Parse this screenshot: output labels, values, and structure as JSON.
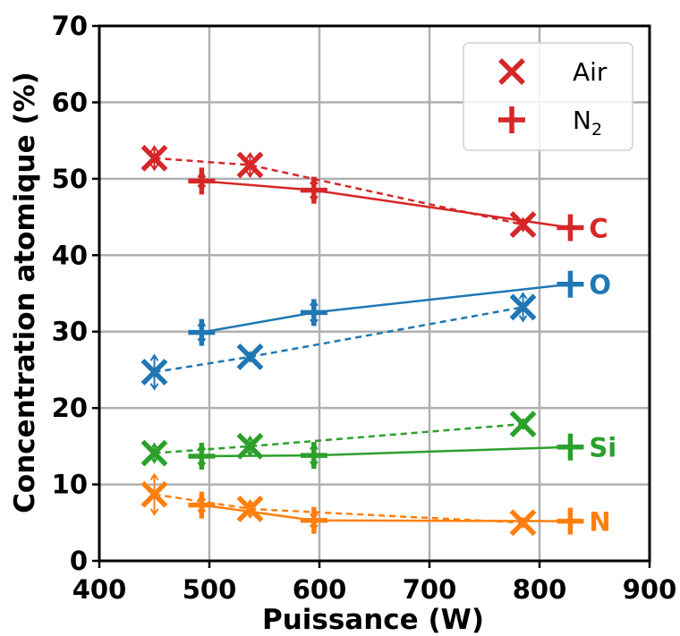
{
  "chart_data": {
    "type": "line",
    "xlabel": "Puissance (W)",
    "ylabel": "Concentration atomique (%)",
    "xlim": [
      400,
      900
    ],
    "ylim": [
      0,
      70
    ],
    "x_ticks": [
      "400",
      "500",
      "600",
      "700",
      "800",
      "900"
    ],
    "y_ticks": [
      "0",
      "10",
      "20",
      "30",
      "40",
      "50",
      "60",
      "70"
    ],
    "grid": true,
    "legend": {
      "placement": "top-right",
      "entries": [
        {
          "marker": "x",
          "label": "Air"
        },
        {
          "marker": "+",
          "label": "N",
          "subscript": "2"
        }
      ]
    },
    "series": [
      {
        "element": "C",
        "atmosphere": "Air",
        "color": "#d62728",
        "marker": "x",
        "line": "dashed",
        "x": [
          450,
          537,
          785
        ],
        "y": [
          52.7,
          51.8,
          44.0
        ],
        "yerr": [
          1.5,
          1.5,
          0.8
        ]
      },
      {
        "element": "C",
        "atmosphere": "N2",
        "color": "#d62728",
        "marker": "+",
        "line": "solid",
        "x": [
          493,
          595,
          828
        ],
        "y": [
          49.7,
          48.5,
          43.6
        ],
        "yerr": [
          1.2,
          1.5,
          0.5
        ]
      },
      {
        "element": "O",
        "atmosphere": "Air",
        "color": "#1f77b4",
        "marker": "x",
        "line": "dashed",
        "x": [
          450,
          537,
          785
        ],
        "y": [
          24.7,
          26.7,
          33.2
        ],
        "yerr": [
          2.2,
          0.6,
          1.8
        ]
      },
      {
        "element": "O",
        "atmosphere": "N2",
        "color": "#1f77b4",
        "marker": "+",
        "line": "solid",
        "x": [
          493,
          595,
          828
        ],
        "y": [
          29.9,
          32.5,
          36.2
        ],
        "yerr": [
          1.5,
          1.6,
          0.5
        ]
      },
      {
        "element": "Si",
        "atmosphere": "Air",
        "color": "#2ca02c",
        "marker": "x",
        "line": "dashed",
        "x": [
          450,
          537,
          785
        ],
        "y": [
          14.1,
          15.0,
          17.9
        ],
        "yerr": [
          1.2,
          1.2,
          0.6
        ]
      },
      {
        "element": "Si",
        "atmosphere": "N2",
        "color": "#2ca02c",
        "marker": "+",
        "line": "solid",
        "x": [
          493,
          595,
          828
        ],
        "y": [
          13.7,
          13.8,
          14.9
        ],
        "yerr": [
          1.5,
          1.5,
          0.5
        ]
      },
      {
        "element": "N",
        "atmosphere": "Air",
        "color": "#ff7f0e",
        "marker": "x",
        "line": "dashed",
        "x": [
          450,
          537,
          785
        ],
        "y": [
          8.7,
          6.8,
          5.0
        ],
        "yerr": [
          2.6,
          1.1,
          0.6
        ]
      },
      {
        "element": "N",
        "atmosphere": "N2",
        "color": "#ff7f0e",
        "marker": "+",
        "line": "solid",
        "x": [
          493,
          595,
          828
        ],
        "y": [
          7.3,
          5.3,
          5.2
        ],
        "yerr": [
          1.3,
          1.3,
          0.6
        ]
      }
    ],
    "annotations": [
      {
        "text": "C",
        "color": "#d62728",
        "x": 845,
        "y": 43.6
      },
      {
        "text": "O",
        "color": "#1f77b4",
        "x": 845,
        "y": 36.2
      },
      {
        "text": "Si",
        "color": "#2ca02c",
        "x": 845,
        "y": 14.9
      },
      {
        "text": "N",
        "color": "#ff7f0e",
        "x": 845,
        "y": 5.2
      }
    ]
  }
}
